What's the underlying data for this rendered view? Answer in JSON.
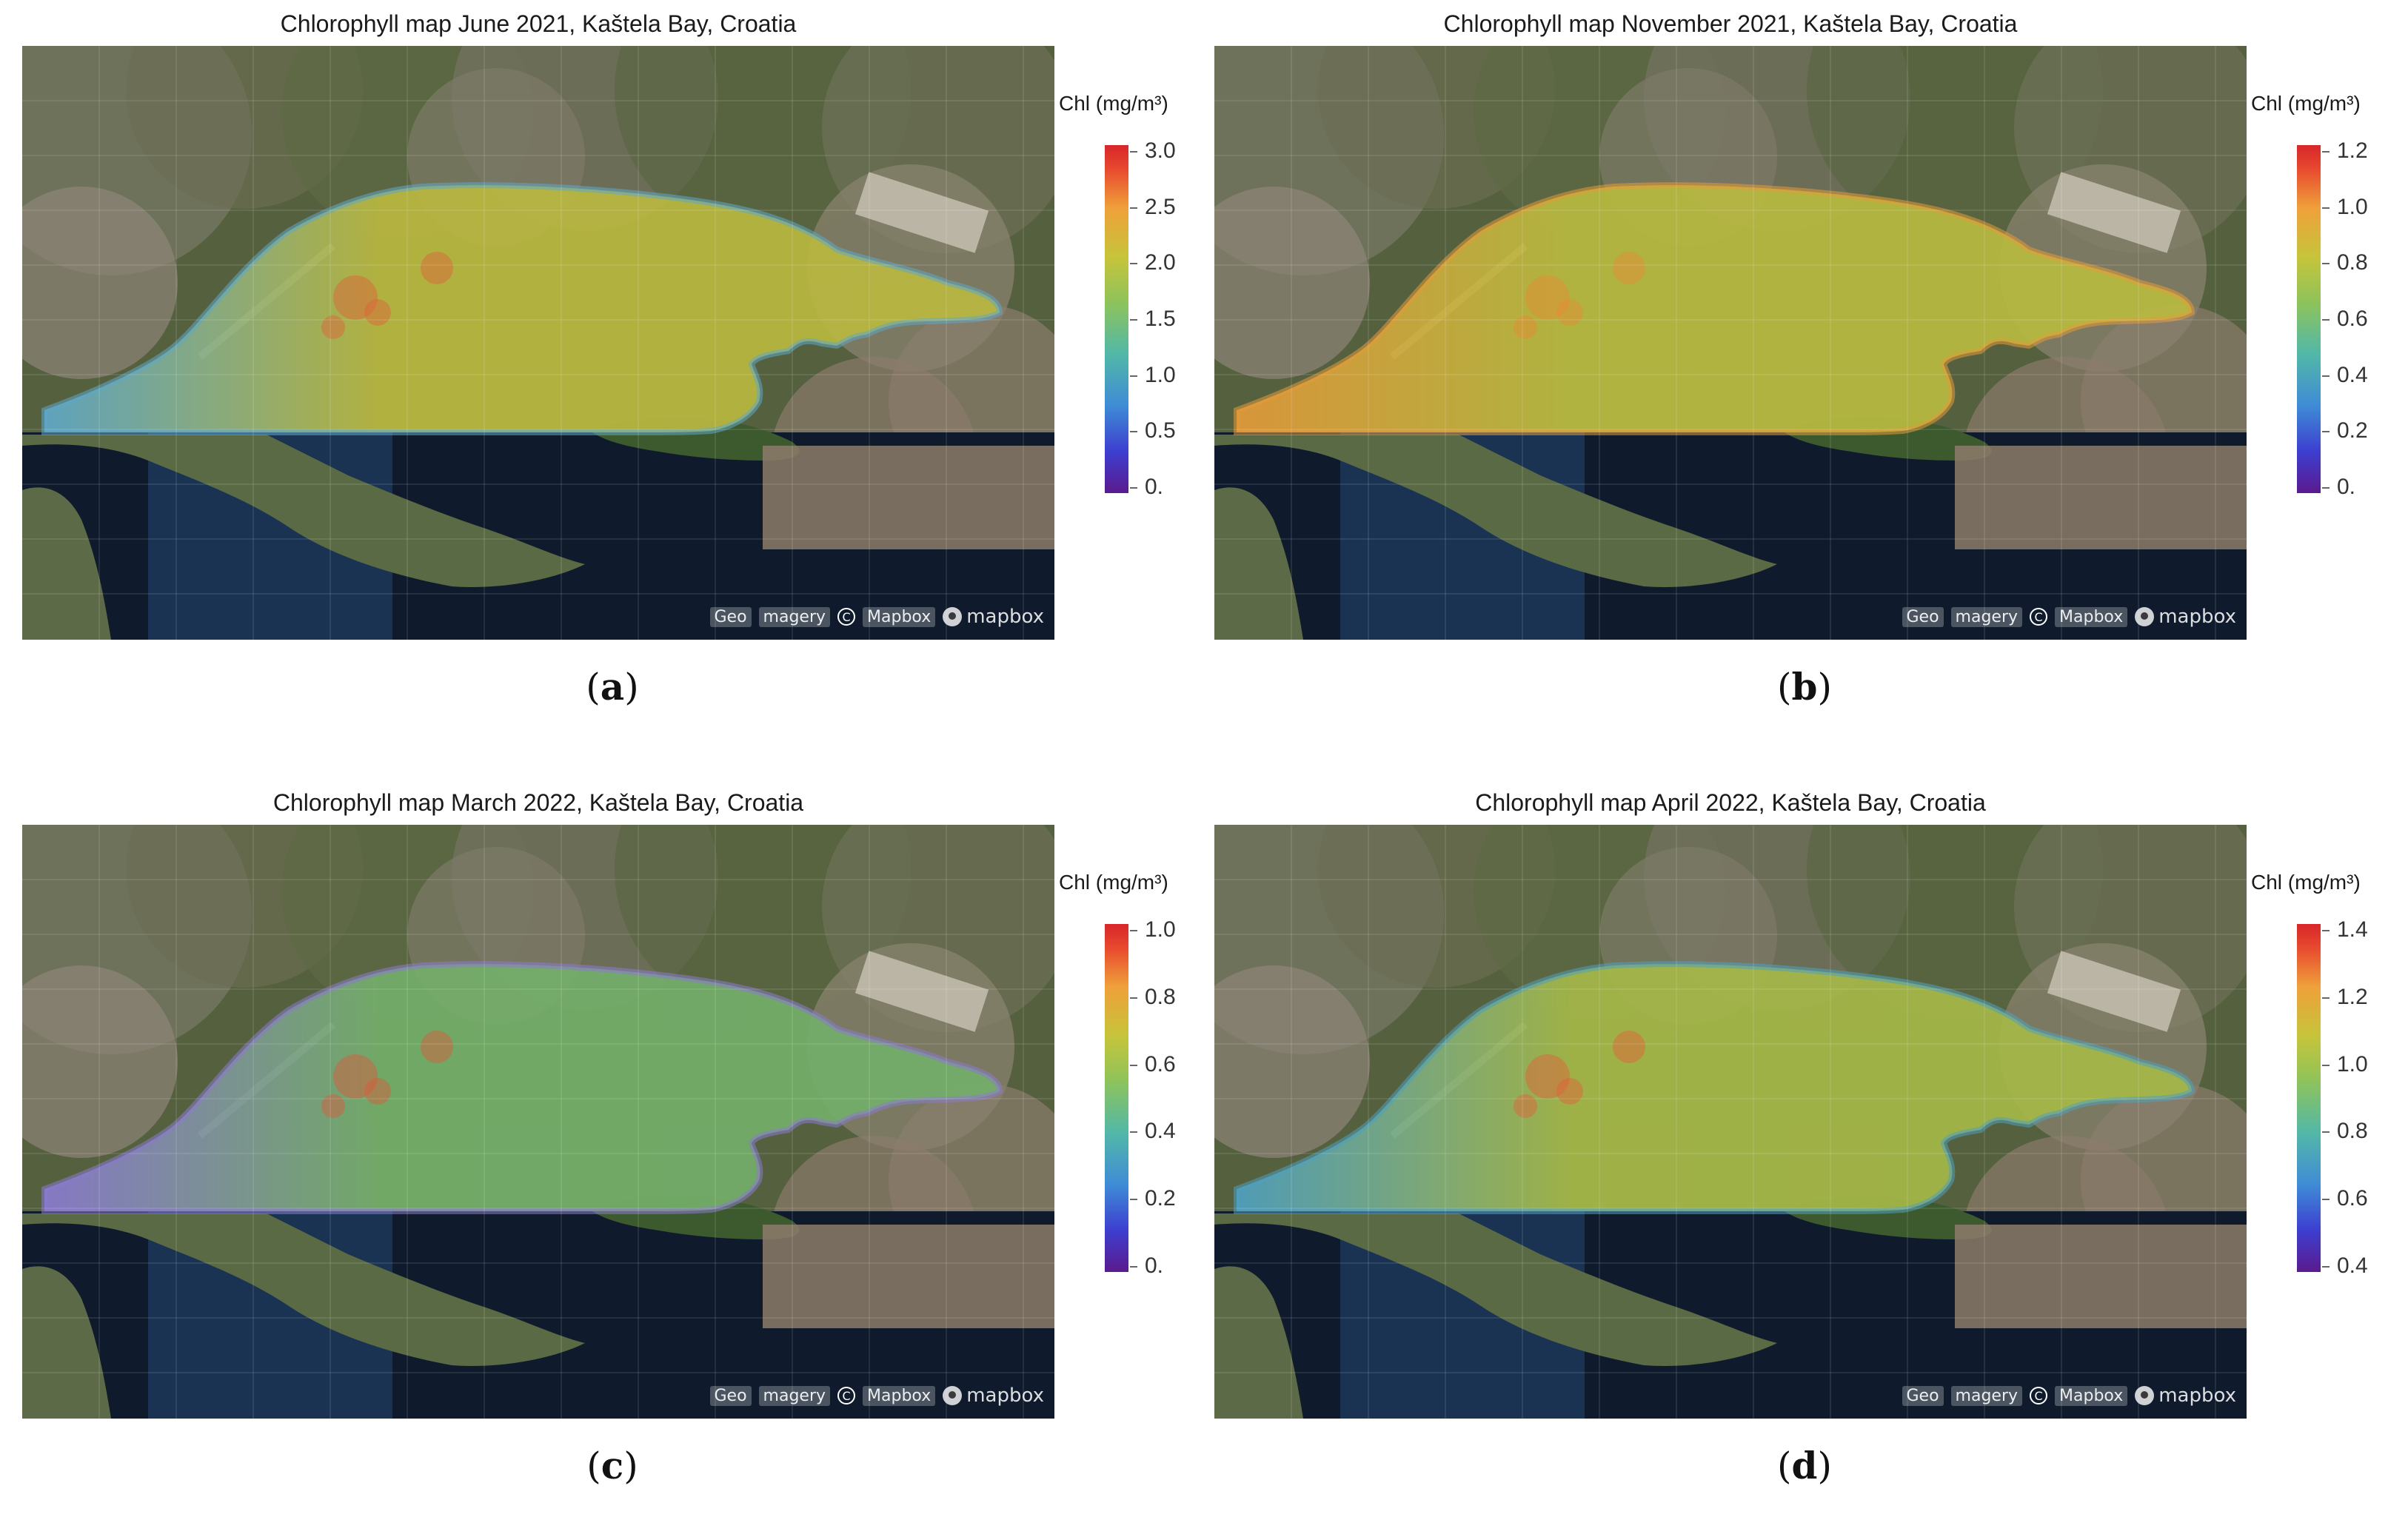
{
  "panels": [
    {
      "title": "Chlorophyll map June 2021, Kaštela Bay, Croatia",
      "caption": "a",
      "legend_title": "Chl (mg/m³)",
      "ticks": [
        "3.0",
        "2.5",
        "2.0",
        "1.5",
        "1.0",
        "0.5",
        "0."
      ],
      "water_color": "#b9b840",
      "edge_color": "#5fa8c8",
      "hot_color": "#e0603a"
    },
    {
      "title": "Chlorophyll map November 2021, Kaštela Bay, Croatia",
      "caption": "b",
      "legend_title": "Chl (mg/m³)",
      "ticks": [
        "1.2",
        "1.0",
        "0.8",
        "0.6",
        "0.4",
        "0.2",
        "0."
      ],
      "water_color": "#b8ba40",
      "edge_color": "#e39a3a",
      "hot_color": "#e98a35"
    },
    {
      "title": "Chlorophyll map March 2022, Kaštela Bay, Croatia",
      "caption": "c",
      "legend_title": "Chl (mg/m³)",
      "ticks": [
        "1.0",
        "0.8",
        "0.6",
        "0.4",
        "0.2",
        "0."
      ],
      "water_color": "#74ae6a",
      "edge_color": "#8a7ad0",
      "hot_color": "#e0563a"
    },
    {
      "title": "Chlorophyll map April 2022, Kaštela Bay, Croatia",
      "caption": "d",
      "legend_title": "Chl (mg/m³)",
      "ticks": [
        "1.4",
        "1.2",
        "1.0",
        "0.8",
        "0.6",
        "0.4"
      ],
      "water_color": "#a5b848",
      "edge_color": "#4fa0c0",
      "hot_color": "#e55d3a"
    }
  ],
  "attribution": {
    "chip1": "Geo",
    "chip2": "magery",
    "copy_symbol": "C",
    "chip3": "Mapbox",
    "logo_text": "mapbox"
  },
  "icons": {
    "copyright": "copyright-icon",
    "mapbox_logo": "mapbox-logo-icon"
  }
}
